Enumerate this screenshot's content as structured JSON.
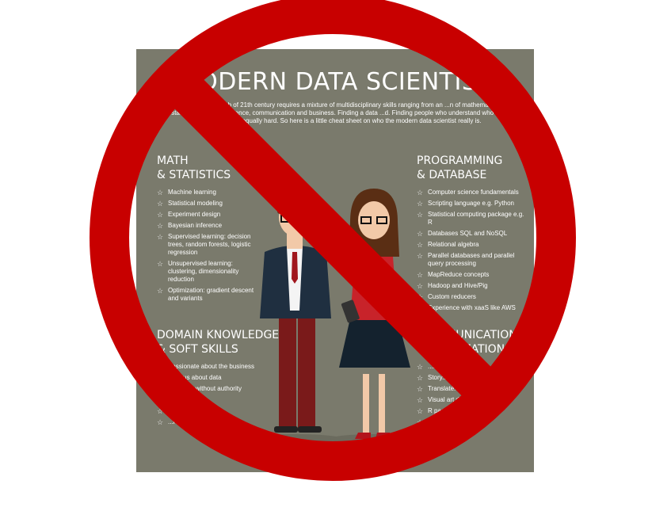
{
  "poster": {
    "title": "MODERN DATA SCIENTIST",
    "intro": "...ntist, the sexiest job of 21th century requires a mixture of multidisciplinary skills ranging from an ...n of mathematics, statistics, computer science, communication and business. Finding a data ...d. Finding people who understand who a data scientist is, is equally hard. So here is a little cheat sheet on who the modern data scientist really is."
  },
  "sections": {
    "math": {
      "title": "MATH\n& STATISTICS",
      "items": [
        "Machine learning",
        "Statistical modeling",
        "Experiment design",
        "Bayesian inference",
        "Supervised learning: decision trees, random forests, logistic regression",
        "Unsupervised learning: clustering, dimensionality reduction",
        "Optimization: gradient descent and variants"
      ]
    },
    "programming": {
      "title": "PROGRAMMING\n& DATABASE",
      "items": [
        "Computer science fundamentals",
        "Scripting language e.g. Python",
        "Statistical computing package e.g. R",
        "Databases SQL and NoSQL",
        "Relational algebra",
        "Parallel databases and parallel query processing",
        "MapReduce concepts",
        "Hadoop and Hive/Pig",
        "Custom reducers",
        "Experience with xaaS like AWS"
      ]
    },
    "domain": {
      "title": "DOMAIN KNOWLEDGE\n& SOFT SKILLS",
      "items": [
        "Passionate about the business",
        "Curious about data",
        "Influence without authority",
        "...er mindset",
        "...lver",
        "...ive, creative, ...ative"
      ]
    },
    "communication": {
      "title": "...MUNICATION\n...ALIZATION",
      "items": [
        "...h senior",
        "Story...",
        "Translate... decisions an...",
        "Visual art de...",
        "R pack...",
        "...ization",
        "...ableau"
      ]
    }
  },
  "colors": {
    "sign_red": "#c80000",
    "poster_bg": "#7a7a6c"
  }
}
